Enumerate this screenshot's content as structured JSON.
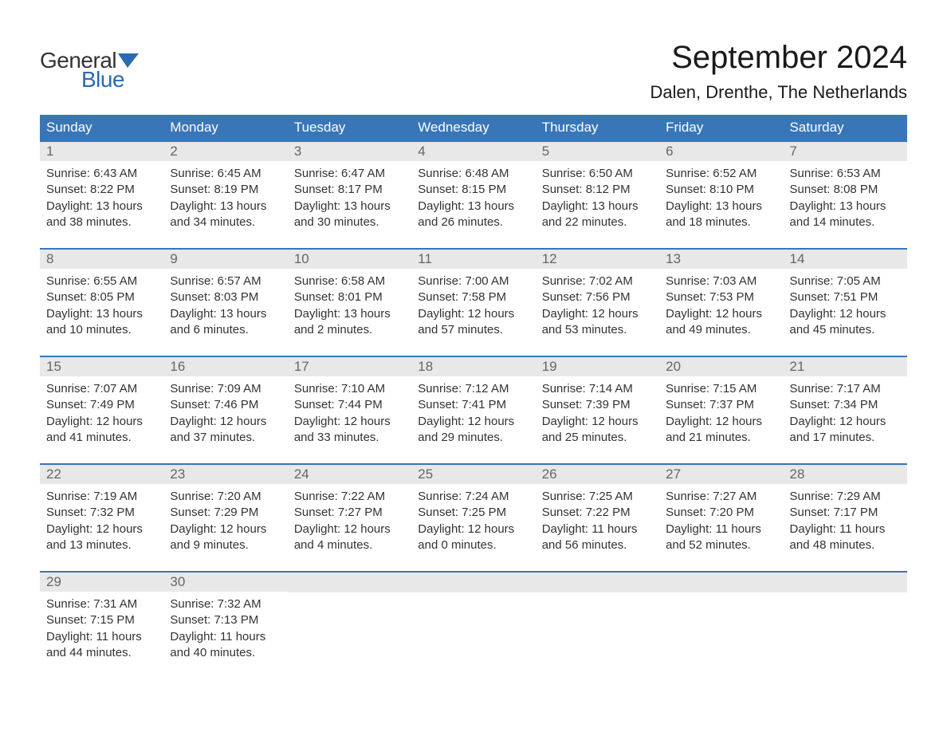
{
  "logo": {
    "text_top": "General",
    "text_bottom": "Blue",
    "icon_color": "#2a6ab0"
  },
  "title": "September 2024",
  "location": "Dalen, Drenthe, The Netherlands",
  "colors": {
    "header_bg": "#3876b8",
    "header_text": "#ffffff",
    "day_number_bg": "#e8e8e8",
    "day_number_text": "#666666",
    "body_text": "#333333",
    "week_border": "#3876b8",
    "logo_blue": "#2a6ab0",
    "background": "#ffffff"
  },
  "weekdays": [
    "Sunday",
    "Monday",
    "Tuesday",
    "Wednesday",
    "Thursday",
    "Friday",
    "Saturday"
  ],
  "weeks": [
    [
      {
        "day": "1",
        "sunrise": "Sunrise: 6:43 AM",
        "sunset": "Sunset: 8:22 PM",
        "daylight1": "Daylight: 13 hours",
        "daylight2": "and 38 minutes."
      },
      {
        "day": "2",
        "sunrise": "Sunrise: 6:45 AM",
        "sunset": "Sunset: 8:19 PM",
        "daylight1": "Daylight: 13 hours",
        "daylight2": "and 34 minutes."
      },
      {
        "day": "3",
        "sunrise": "Sunrise: 6:47 AM",
        "sunset": "Sunset: 8:17 PM",
        "daylight1": "Daylight: 13 hours",
        "daylight2": "and 30 minutes."
      },
      {
        "day": "4",
        "sunrise": "Sunrise: 6:48 AM",
        "sunset": "Sunset: 8:15 PM",
        "daylight1": "Daylight: 13 hours",
        "daylight2": "and 26 minutes."
      },
      {
        "day": "5",
        "sunrise": "Sunrise: 6:50 AM",
        "sunset": "Sunset: 8:12 PM",
        "daylight1": "Daylight: 13 hours",
        "daylight2": "and 22 minutes."
      },
      {
        "day": "6",
        "sunrise": "Sunrise: 6:52 AM",
        "sunset": "Sunset: 8:10 PM",
        "daylight1": "Daylight: 13 hours",
        "daylight2": "and 18 minutes."
      },
      {
        "day": "7",
        "sunrise": "Sunrise: 6:53 AM",
        "sunset": "Sunset: 8:08 PM",
        "daylight1": "Daylight: 13 hours",
        "daylight2": "and 14 minutes."
      }
    ],
    [
      {
        "day": "8",
        "sunrise": "Sunrise: 6:55 AM",
        "sunset": "Sunset: 8:05 PM",
        "daylight1": "Daylight: 13 hours",
        "daylight2": "and 10 minutes."
      },
      {
        "day": "9",
        "sunrise": "Sunrise: 6:57 AM",
        "sunset": "Sunset: 8:03 PM",
        "daylight1": "Daylight: 13 hours",
        "daylight2": "and 6 minutes."
      },
      {
        "day": "10",
        "sunrise": "Sunrise: 6:58 AM",
        "sunset": "Sunset: 8:01 PM",
        "daylight1": "Daylight: 13 hours",
        "daylight2": "and 2 minutes."
      },
      {
        "day": "11",
        "sunrise": "Sunrise: 7:00 AM",
        "sunset": "Sunset: 7:58 PM",
        "daylight1": "Daylight: 12 hours",
        "daylight2": "and 57 minutes."
      },
      {
        "day": "12",
        "sunrise": "Sunrise: 7:02 AM",
        "sunset": "Sunset: 7:56 PM",
        "daylight1": "Daylight: 12 hours",
        "daylight2": "and 53 minutes."
      },
      {
        "day": "13",
        "sunrise": "Sunrise: 7:03 AM",
        "sunset": "Sunset: 7:53 PM",
        "daylight1": "Daylight: 12 hours",
        "daylight2": "and 49 minutes."
      },
      {
        "day": "14",
        "sunrise": "Sunrise: 7:05 AM",
        "sunset": "Sunset: 7:51 PM",
        "daylight1": "Daylight: 12 hours",
        "daylight2": "and 45 minutes."
      }
    ],
    [
      {
        "day": "15",
        "sunrise": "Sunrise: 7:07 AM",
        "sunset": "Sunset: 7:49 PM",
        "daylight1": "Daylight: 12 hours",
        "daylight2": "and 41 minutes."
      },
      {
        "day": "16",
        "sunrise": "Sunrise: 7:09 AM",
        "sunset": "Sunset: 7:46 PM",
        "daylight1": "Daylight: 12 hours",
        "daylight2": "and 37 minutes."
      },
      {
        "day": "17",
        "sunrise": "Sunrise: 7:10 AM",
        "sunset": "Sunset: 7:44 PM",
        "daylight1": "Daylight: 12 hours",
        "daylight2": "and 33 minutes."
      },
      {
        "day": "18",
        "sunrise": "Sunrise: 7:12 AM",
        "sunset": "Sunset: 7:41 PM",
        "daylight1": "Daylight: 12 hours",
        "daylight2": "and 29 minutes."
      },
      {
        "day": "19",
        "sunrise": "Sunrise: 7:14 AM",
        "sunset": "Sunset: 7:39 PM",
        "daylight1": "Daylight: 12 hours",
        "daylight2": "and 25 minutes."
      },
      {
        "day": "20",
        "sunrise": "Sunrise: 7:15 AM",
        "sunset": "Sunset: 7:37 PM",
        "daylight1": "Daylight: 12 hours",
        "daylight2": "and 21 minutes."
      },
      {
        "day": "21",
        "sunrise": "Sunrise: 7:17 AM",
        "sunset": "Sunset: 7:34 PM",
        "daylight1": "Daylight: 12 hours",
        "daylight2": "and 17 minutes."
      }
    ],
    [
      {
        "day": "22",
        "sunrise": "Sunrise: 7:19 AM",
        "sunset": "Sunset: 7:32 PM",
        "daylight1": "Daylight: 12 hours",
        "daylight2": "and 13 minutes."
      },
      {
        "day": "23",
        "sunrise": "Sunrise: 7:20 AM",
        "sunset": "Sunset: 7:29 PM",
        "daylight1": "Daylight: 12 hours",
        "daylight2": "and 9 minutes."
      },
      {
        "day": "24",
        "sunrise": "Sunrise: 7:22 AM",
        "sunset": "Sunset: 7:27 PM",
        "daylight1": "Daylight: 12 hours",
        "daylight2": "and 4 minutes."
      },
      {
        "day": "25",
        "sunrise": "Sunrise: 7:24 AM",
        "sunset": "Sunset: 7:25 PM",
        "daylight1": "Daylight: 12 hours",
        "daylight2": "and 0 minutes."
      },
      {
        "day": "26",
        "sunrise": "Sunrise: 7:25 AM",
        "sunset": "Sunset: 7:22 PM",
        "daylight1": "Daylight: 11 hours",
        "daylight2": "and 56 minutes."
      },
      {
        "day": "27",
        "sunrise": "Sunrise: 7:27 AM",
        "sunset": "Sunset: 7:20 PM",
        "daylight1": "Daylight: 11 hours",
        "daylight2": "and 52 minutes."
      },
      {
        "day": "28",
        "sunrise": "Sunrise: 7:29 AM",
        "sunset": "Sunset: 7:17 PM",
        "daylight1": "Daylight: 11 hours",
        "daylight2": "and 48 minutes."
      }
    ],
    [
      {
        "day": "29",
        "sunrise": "Sunrise: 7:31 AM",
        "sunset": "Sunset: 7:15 PM",
        "daylight1": "Daylight: 11 hours",
        "daylight2": "and 44 minutes."
      },
      {
        "day": "30",
        "sunrise": "Sunrise: 7:32 AM",
        "sunset": "Sunset: 7:13 PM",
        "daylight1": "Daylight: 11 hours",
        "daylight2": "and 40 minutes."
      },
      {
        "empty": true
      },
      {
        "empty": true
      },
      {
        "empty": true
      },
      {
        "empty": true
      },
      {
        "empty": true
      }
    ]
  ]
}
